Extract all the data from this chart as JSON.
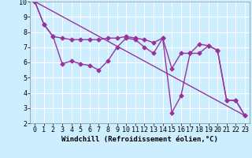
{
  "background_color": "#cceeff",
  "plot_bg_color": "#cceeff",
  "line_color": "#993399",
  "marker": "D",
  "markersize": 2.5,
  "linewidth": 1.0,
  "xlim": [
    -0.5,
    23.5
  ],
  "ylim": [
    2,
    10
  ],
  "xlabel": "Windchill (Refroidissement éolien,°C)",
  "xlabel_fontsize": 6.5,
  "tick_fontsize": 6,
  "grid_color": "#ffffff",
  "series1_x": [
    0,
    1,
    2,
    3,
    4,
    5,
    6,
    7,
    8,
    9,
    10,
    11,
    12,
    13,
    14,
    15,
    16,
    17,
    18,
    19,
    20,
    21,
    22,
    23
  ],
  "series1_y": [
    10.0,
    8.5,
    7.7,
    7.6,
    7.5,
    7.5,
    7.5,
    7.5,
    7.6,
    7.6,
    7.7,
    7.6,
    7.5,
    7.3,
    7.6,
    5.6,
    6.6,
    6.6,
    7.2,
    7.1,
    6.8,
    3.5,
    3.5,
    2.5
  ],
  "series2_x": [
    0,
    1,
    2,
    3,
    4,
    5,
    6,
    7,
    8,
    9,
    10,
    11,
    12,
    13,
    14,
    15,
    16,
    17,
    18,
    19,
    20,
    21,
    22,
    23
  ],
  "series2_y": [
    10.0,
    8.5,
    7.7,
    5.9,
    6.1,
    5.9,
    5.8,
    5.5,
    6.1,
    7.0,
    7.6,
    7.5,
    7.0,
    6.6,
    7.6,
    2.7,
    3.8,
    6.6,
    6.6,
    7.1,
    6.8,
    3.5,
    3.5,
    2.5
  ],
  "series3_x": [
    0,
    23
  ],
  "series3_y": [
    10.0,
    2.5
  ],
  "xticks": [
    0,
    1,
    2,
    3,
    4,
    5,
    6,
    7,
    8,
    9,
    10,
    11,
    12,
    13,
    14,
    15,
    16,
    17,
    18,
    19,
    20,
    21,
    22,
    23
  ],
  "yticks": [
    2,
    3,
    4,
    5,
    6,
    7,
    8,
    9,
    10
  ]
}
